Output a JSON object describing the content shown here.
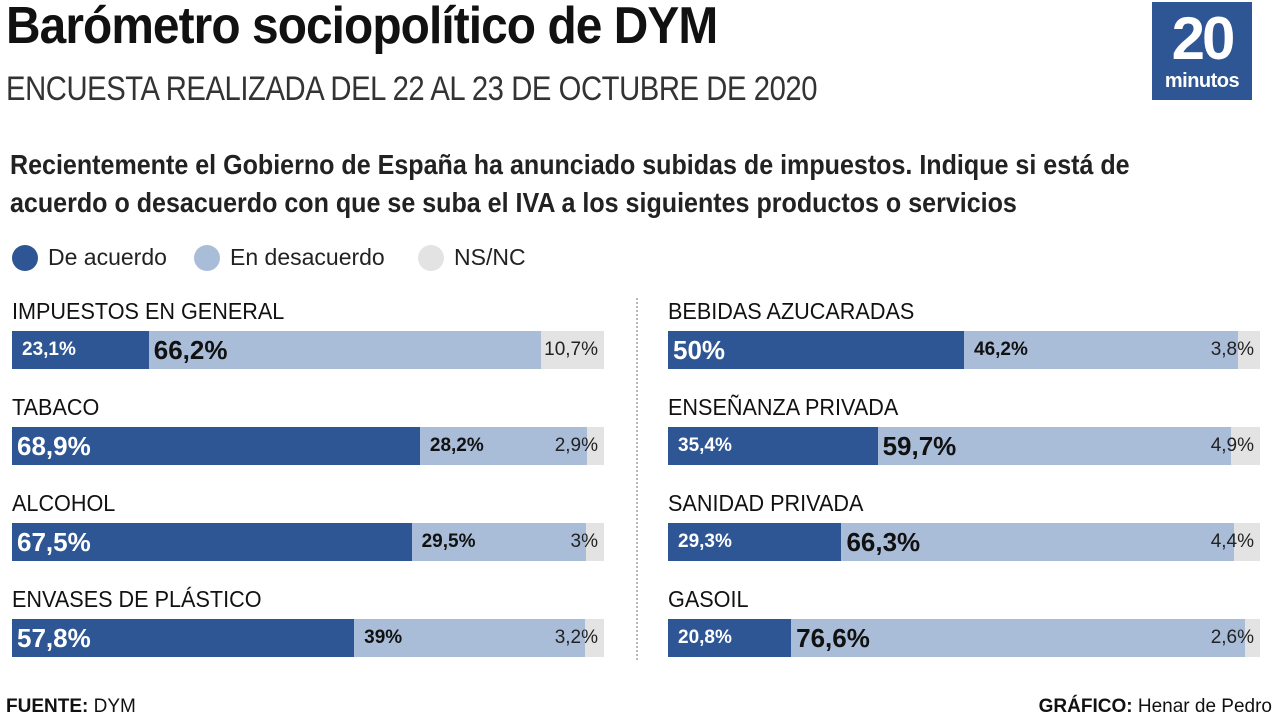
{
  "header": {
    "title": "Barómetro sociopolítico de DYM",
    "subtitle": "ENCUESTA REALIZADA DEL 22 AL 23 DE OCTUBRE DE 2020",
    "logo_number": "20",
    "logo_word": "minutos"
  },
  "question": "Recientemente el Gobierno de España ha anunciado subidas de impuestos. Indique si está de acuerdo o desacuerdo con que se suba el IVA a los siguientes productos o servicios",
  "legend": {
    "agree": "De acuerdo",
    "disagree": "En desacuerdo",
    "nsnc": "NS/NC"
  },
  "colors": {
    "agree": "#2e5694",
    "disagree": "#a9bdd9",
    "nsnc": "#e3e3e3",
    "logo_bg": "#2e5694"
  },
  "chart_data": {
    "type": "bar",
    "orientation": "horizontal",
    "stacked": true,
    "normalized": true,
    "series_names": [
      "De acuerdo",
      "En desacuerdo",
      "NS/NC"
    ],
    "categories": [
      {
        "label": "IMPUESTOS EN GENERAL",
        "values": [
          23.1,
          66.2,
          10.7
        ],
        "value_labels": [
          "23,1%",
          "66,2%",
          "10,7%"
        ],
        "highlight": "disagree"
      },
      {
        "label": "TABACO",
        "values": [
          68.9,
          28.2,
          2.9
        ],
        "value_labels": [
          "68,9%",
          "28,2%",
          "2,9%"
        ],
        "highlight": "agree"
      },
      {
        "label": "ALCOHOL",
        "values": [
          67.5,
          29.5,
          3
        ],
        "value_labels": [
          "67,5%",
          "29,5%",
          "3%"
        ],
        "highlight": "agree"
      },
      {
        "label": "ENVASES DE PLÁSTICO",
        "values": [
          57.8,
          39,
          3.2
        ],
        "value_labels": [
          "57,8%",
          "39%",
          "3,2%"
        ],
        "highlight": "agree"
      },
      {
        "label": "BEBIDAS AZUCARADAS",
        "values": [
          50,
          46.2,
          3.8
        ],
        "value_labels": [
          "50%",
          "46,2%",
          "3,8%"
        ],
        "highlight": "agree"
      },
      {
        "label": "ENSEÑANZA PRIVADA",
        "values": [
          35.4,
          59.7,
          4.9
        ],
        "value_labels": [
          "35,4%",
          "59,7%",
          "4,9%"
        ],
        "highlight": "disagree"
      },
      {
        "label": "SANIDAD PRIVADA",
        "values": [
          29.3,
          66.3,
          4.4
        ],
        "value_labels": [
          "29,3%",
          "66,3%",
          "4,4%"
        ],
        "highlight": "disagree"
      },
      {
        "label": "GASOIL",
        "values": [
          20.8,
          76.6,
          2.6
        ],
        "value_labels": [
          "20,8%",
          "76,6%",
          "2,6%"
        ],
        "highlight": "disagree"
      }
    ]
  },
  "footer": {
    "source_label": "FUENTE:",
    "source_value": "DYM",
    "credit_label": "GRÁFICO:",
    "credit_value": "Henar de Pedro"
  }
}
